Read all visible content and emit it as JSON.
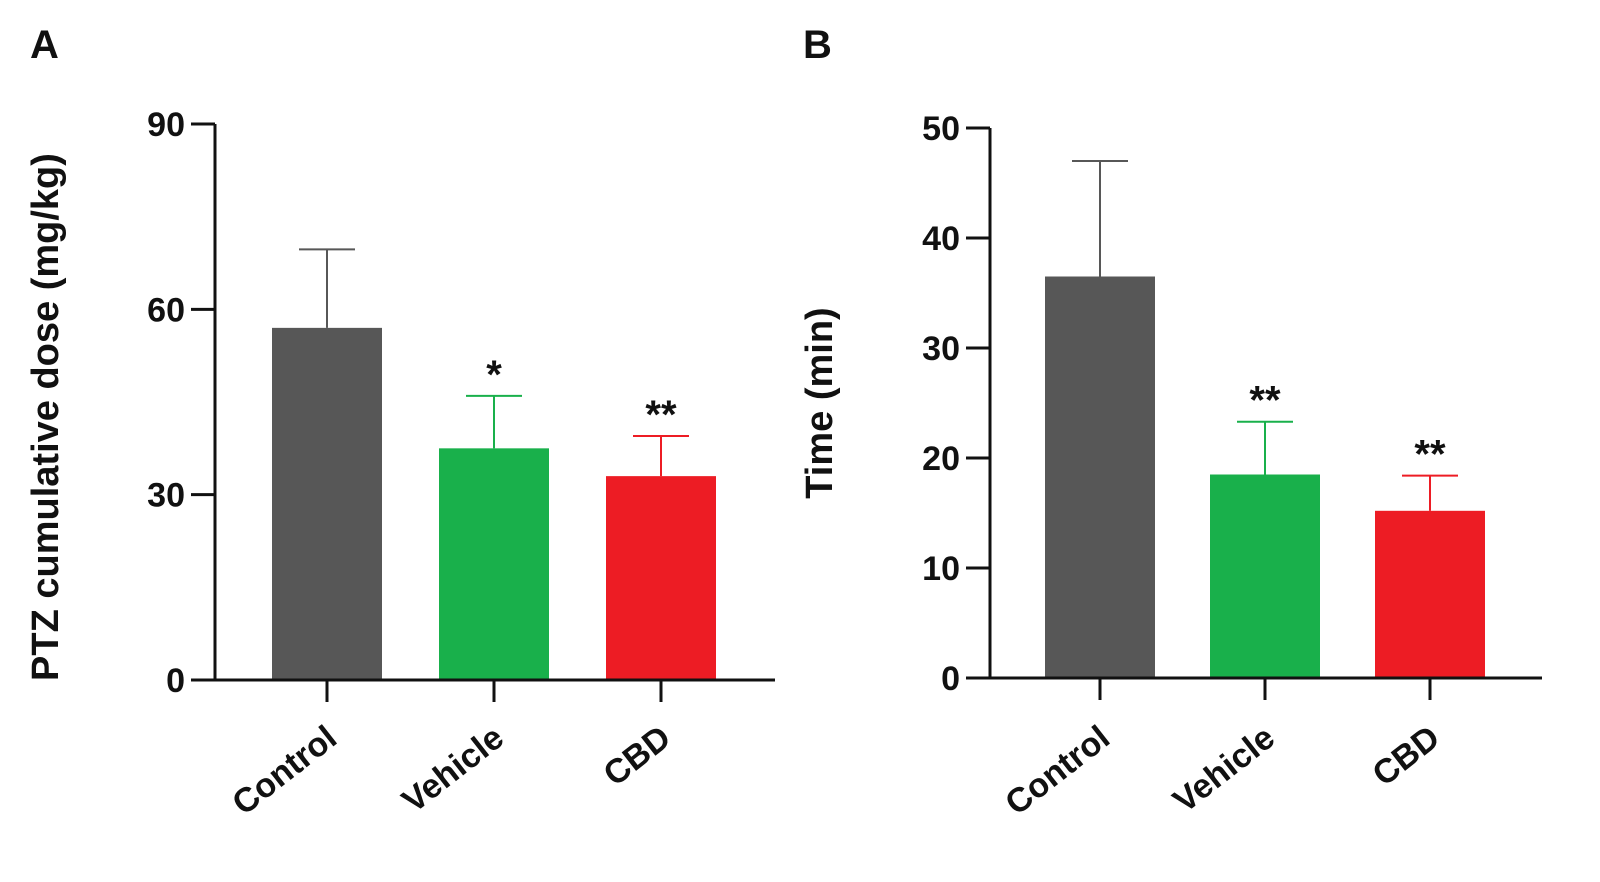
{
  "chart_data": [
    {
      "panel": "A",
      "type": "bar",
      "categories": [
        "Control",
        "Vehicle",
        "CBD"
      ],
      "values": [
        57,
        37.5,
        33
      ],
      "error": [
        12.7,
        8.5,
        6.5
      ],
      "significance": [
        "",
        "*",
        "**"
      ],
      "colors": [
        "#575757",
        "#19b04b",
        "#ed1c24"
      ],
      "xlabel": "",
      "ylabel": "PTZ cumulative dose (mg/kg)",
      "ylim": [
        0,
        90
      ],
      "yticks": [
        0,
        30,
        60,
        90
      ],
      "grid": false
    },
    {
      "panel": "B",
      "type": "bar",
      "categories": [
        "Control",
        "Vehicle",
        "CBD"
      ],
      "values": [
        36.5,
        18.5,
        15.2
      ],
      "error": [
        10.5,
        4.8,
        3.2
      ],
      "significance": [
        "",
        "**",
        "**"
      ],
      "colors": [
        "#575757",
        "#19b04b",
        "#ed1c24"
      ],
      "xlabel": "",
      "ylabel": "Time (min)",
      "ylim": [
        0,
        50
      ],
      "yticks": [
        0,
        10,
        20,
        30,
        40,
        50
      ],
      "grid": false
    }
  ]
}
